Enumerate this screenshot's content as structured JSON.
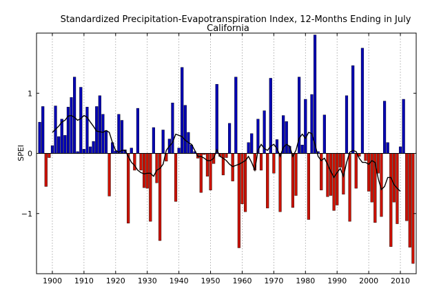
{
  "chart_data": {
    "type": "bar",
    "title": "Standardized Precipitation-Evapotranspiration Index, 12-Months Ending in July",
    "subtitle": "California",
    "xlabel": "",
    "ylabel": "SPEI",
    "xlim": [
      1895,
      2015
    ],
    "ylim": [
      -2.0,
      2.0
    ],
    "grid": "vertical dotted at x ticks",
    "legend": "none",
    "x_ticks": [
      1900,
      1910,
      1920,
      1930,
      1940,
      1950,
      1960,
      1970,
      1980,
      1990,
      2000,
      2010
    ],
    "x_tick_labels": [
      "1900",
      "1910",
      "1920",
      "1930",
      "1940",
      "1950",
      "1960",
      "1970",
      "1980",
      "1990",
      "2000",
      "2010"
    ],
    "y_ticks": [
      -1,
      0,
      1
    ],
    "y_tick_labels": [
      "−1",
      "0",
      "1"
    ],
    "colors": {
      "positive": "#0000b4",
      "negative": "#cc1100",
      "trend_line": "#000000"
    },
    "series": [
      {
        "type": "bar",
        "x": [
          1896,
          1897,
          1898,
          1899,
          1900,
          1901,
          1902,
          1903,
          1904,
          1905,
          1906,
          1907,
          1908,
          1909,
          1910,
          1911,
          1912,
          1913,
          1914,
          1915,
          1916,
          1917,
          1918,
          1919,
          1920,
          1921,
          1922,
          1923,
          1924,
          1925,
          1926,
          1927,
          1928,
          1929,
          1930,
          1931,
          1932,
          1933,
          1934,
          1935,
          1936,
          1937,
          1938,
          1939,
          1940,
          1941,
          1942,
          1943,
          1944,
          1945,
          1946,
          1947,
          1948,
          1949,
          1950,
          1951,
          1952,
          1953,
          1954,
          1955,
          1956,
          1957,
          1958,
          1959,
          1960,
          1961,
          1962,
          1963,
          1964,
          1965,
          1966,
          1967,
          1968,
          1969,
          1970,
          1971,
          1972,
          1973,
          1974,
          1975,
          1976,
          1977,
          1978,
          1979,
          1980,
          1981,
          1982,
          1983,
          1984,
          1985,
          1986,
          1987,
          1988,
          1989,
          1990,
          1991,
          1992,
          1993,
          1994,
          1995,
          1996,
          1997,
          1998,
          1999,
          2000,
          2001,
          2002,
          2003,
          2004,
          2005,
          2006,
          2007,
          2008,
          2009,
          2010,
          2011,
          2012,
          2013,
          2014
        ],
        "values": [
          0.52,
          0.78,
          -0.55,
          -0.07,
          0.13,
          0.79,
          0.28,
          0.57,
          0.3,
          0.77,
          0.93,
          1.27,
          0.03,
          1.1,
          0.07,
          0.77,
          0.11,
          0.2,
          0.78,
          0.96,
          0.65,
          0.38,
          -0.71,
          0.18,
          0.04,
          0.65,
          0.55,
          0.06,
          -1.16,
          0.09,
          -0.28,
          0.75,
          -0.28,
          -0.57,
          -0.58,
          -1.13,
          0.43,
          -0.49,
          -1.45,
          0.39,
          -0.13,
          0.24,
          0.84,
          -0.8,
          0.09,
          1.43,
          0.8,
          0.35,
          0.14,
          0.03,
          -0.08,
          -0.65,
          -0.02,
          -0.38,
          -0.61,
          -0.17,
          1.15,
          -0.05,
          -0.36,
          -0.07,
          0.5,
          -0.46,
          1.27,
          -1.57,
          -0.84,
          -0.97,
          0.18,
          0.33,
          -0.28,
          0.57,
          -0.28,
          0.71,
          -0.91,
          1.25,
          -0.33,
          0.23,
          -0.97,
          0.63,
          0.53,
          0.12,
          -0.9,
          -0.7,
          1.27,
          0.14,
          0.9,
          -1.1,
          0.98,
          1.97,
          0.03,
          -0.61,
          0.64,
          -0.72,
          -0.7,
          -0.95,
          -0.86,
          -0.23,
          -0.68,
          0.96,
          -1.13,
          1.46,
          -0.58,
          -0.05,
          1.75,
          -0.12,
          -0.63,
          -0.81,
          -1.15,
          -0.33,
          -1.05,
          0.87,
          0.18,
          -1.55,
          -0.81,
          -1.17,
          0.11,
          0.9,
          -1.12,
          -1.56,
          -1.83
        ]
      },
      {
        "type": "line",
        "x": [
          1900,
          1901,
          1902,
          1903,
          1904,
          1905,
          1906,
          1907,
          1908,
          1909,
          1910,
          1911,
          1912,
          1913,
          1914,
          1915,
          1916,
          1917,
          1918,
          1919,
          1920,
          1921,
          1922,
          1923,
          1924,
          1925,
          1926,
          1927,
          1928,
          1929,
          1930,
          1931,
          1932,
          1933,
          1934,
          1935,
          1936,
          1937,
          1938,
          1939,
          1940,
          1941,
          1942,
          1943,
          1944,
          1945,
          1946,
          1947,
          1948,
          1949,
          1950,
          1951,
          1952,
          1953,
          1954,
          1955,
          1956,
          1957,
          1958,
          1959,
          1960,
          1961,
          1962,
          1963,
          1964,
          1965,
          1966,
          1967,
          1968,
          1969,
          1970,
          1971,
          1972,
          1973,
          1974,
          1975,
          1976,
          1977,
          1978,
          1979,
          1980,
          1981,
          1982,
          1983,
          1984,
          1985,
          1986,
          1987,
          1988,
          1989,
          1990,
          1991,
          1992,
          1993,
          1994,
          1995,
          1996,
          1997,
          1998,
          1999,
          2000,
          2001,
          2002,
          2003,
          2004,
          2005,
          2006,
          2007,
          2008,
          2009,
          2010
        ],
        "values": [
          0.35,
          0.4,
          0.45,
          0.52,
          0.55,
          0.62,
          0.63,
          0.6,
          0.55,
          0.58,
          0.63,
          0.6,
          0.52,
          0.45,
          0.37,
          0.36,
          0.35,
          0.38,
          0.35,
          0.18,
          0.05,
          0.02,
          0.05,
          0.05,
          -0.05,
          -0.15,
          -0.2,
          -0.28,
          -0.32,
          -0.34,
          -0.33,
          -0.33,
          -0.38,
          -0.28,
          -0.25,
          -0.18,
          0.05,
          0.12,
          0.18,
          0.32,
          0.3,
          0.28,
          0.22,
          0.18,
          0.15,
          0.05,
          -0.05,
          -0.05,
          -0.08,
          -0.12,
          -0.12,
          -0.08,
          0.06,
          -0.05,
          -0.08,
          -0.12,
          -0.18,
          -0.22,
          -0.2,
          -0.18,
          -0.15,
          -0.12,
          -0.05,
          -0.15,
          -0.28,
          0.05,
          0.15,
          0.08,
          0.05,
          0.12,
          0.15,
          0.08,
          -0.05,
          0.1,
          0.15,
          0.12,
          -0.05,
          0.05,
          0.25,
          0.32,
          0.25,
          0.35,
          0.33,
          0.15,
          -0.05,
          -0.12,
          -0.08,
          -0.18,
          -0.3,
          -0.4,
          -0.32,
          -0.25,
          -0.38,
          -0.15,
          0.02,
          0.05,
          0.03,
          -0.08,
          -0.15,
          -0.15,
          -0.18,
          -0.12,
          -0.15,
          -0.42,
          -0.6,
          -0.55,
          -0.4,
          -0.4,
          -0.52,
          -0.58,
          -0.63
        ]
      }
    ]
  }
}
